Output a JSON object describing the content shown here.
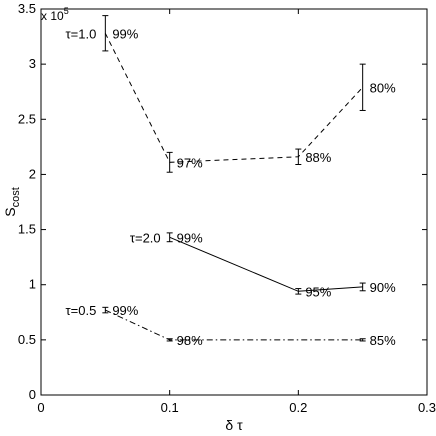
{
  "chart_data": {
    "type": "line",
    "xlabel": "δ τ",
    "ylabel_main": "S",
    "ylabel_sub": "cost",
    "y_multiplier_base": "x 10",
    "y_multiplier_exp": "5",
    "xlim": [
      0,
      0.3
    ],
    "ylim": [
      0,
      350000
    ],
    "xticks": [
      0,
      0.1,
      0.2,
      0.3
    ],
    "xtick_labels": [
      "0",
      "0.1",
      "0.2",
      "0.3"
    ],
    "yticks": [
      0,
      50000,
      100000,
      150000,
      200000,
      250000,
      300000,
      350000
    ],
    "ytick_labels": [
      "0",
      "0.5",
      "1",
      "1.5",
      "2",
      "2.5",
      "3",
      "3.5"
    ],
    "grid": false,
    "series": [
      {
        "name": "τ=1.0",
        "style": "dashed",
        "x": [
          0.05,
          0.1,
          0.2,
          0.25
        ],
        "y": [
          328000,
          211000,
          216000,
          279000
        ],
        "err": [
          16000,
          9000,
          7000,
          21000
        ],
        "labels": [
          "99%",
          "97%",
          "88%",
          "80%"
        ]
      },
      {
        "name": "τ=2.0",
        "style": "solid",
        "x": [
          0.1,
          0.2,
          0.25
        ],
        "y": [
          143000,
          94000,
          98000
        ],
        "err": [
          4000,
          2500,
          3500
        ],
        "labels": [
          "99%",
          "95%",
          "90%"
        ]
      },
      {
        "name": "τ=0.5",
        "style": "dashdot",
        "x": [
          0.05,
          0.1,
          0.25
        ],
        "y": [
          77000,
          50000,
          50000
        ],
        "err": [
          2500,
          1000,
          1000
        ],
        "labels": [
          "99%",
          "98%",
          "85%"
        ]
      }
    ]
  }
}
